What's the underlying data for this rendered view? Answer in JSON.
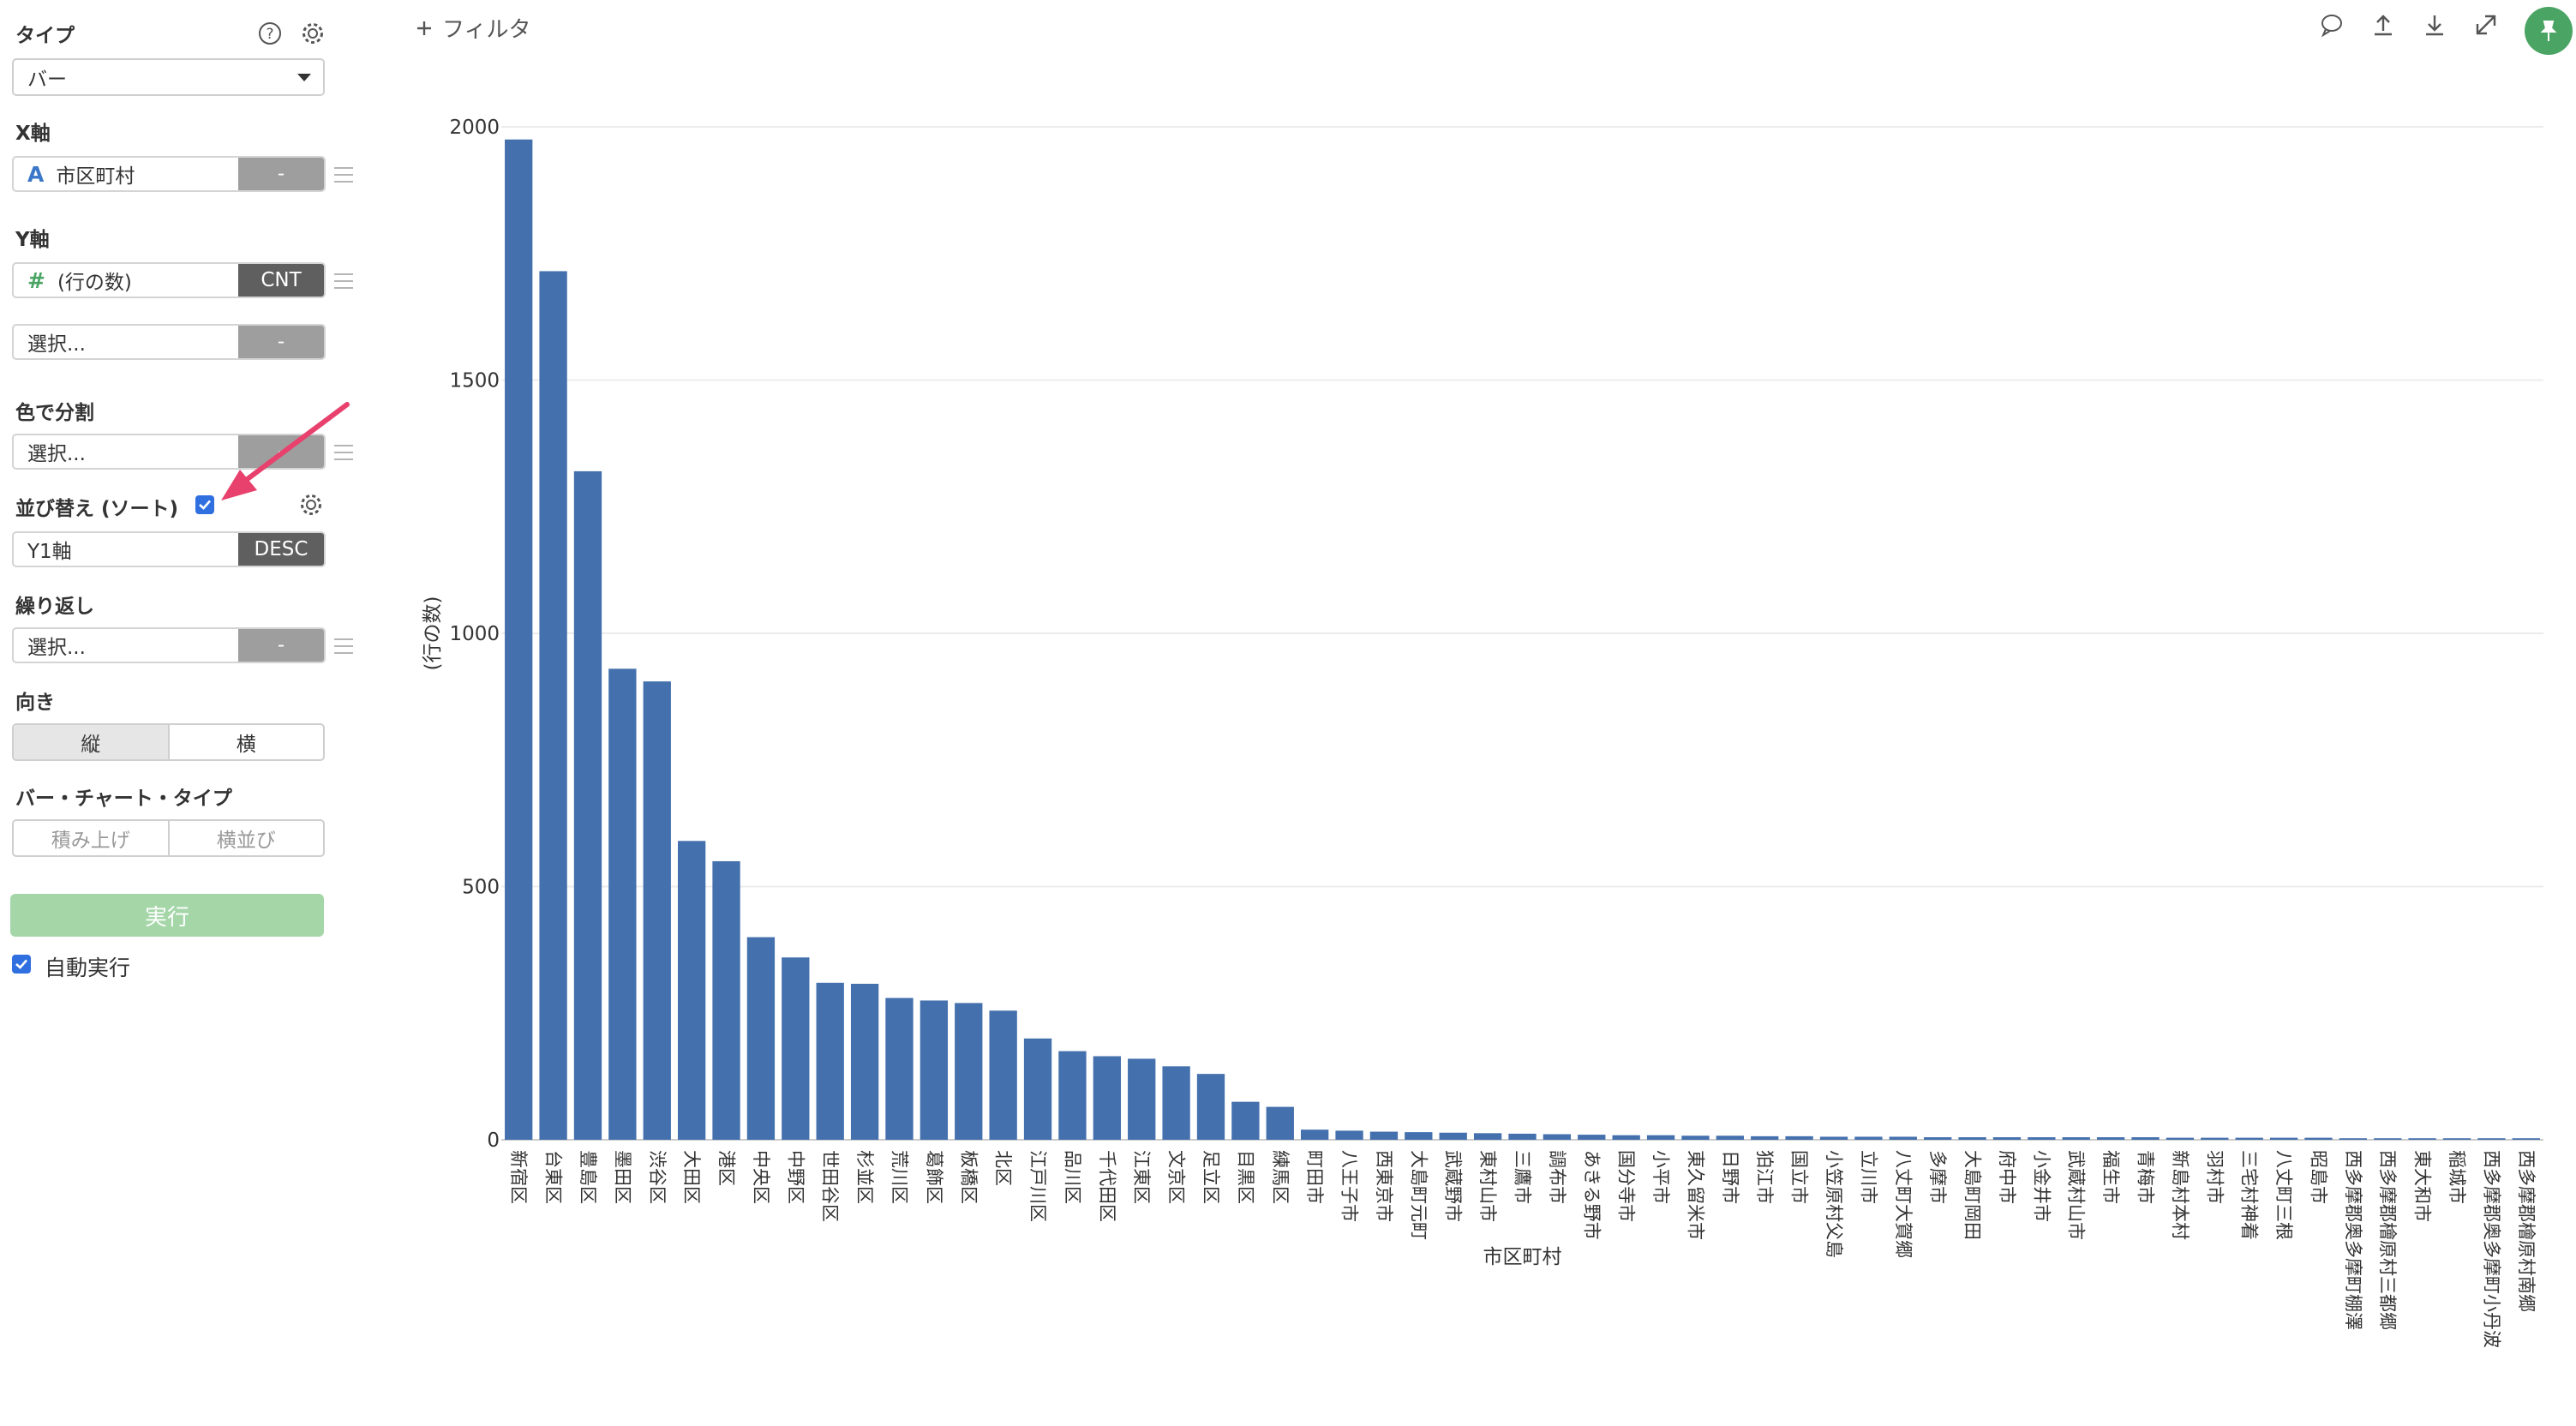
{
  "sidebar": {
    "type_title": "タイプ",
    "type_value": "バー",
    "x_axis_title": "X軸",
    "x_field": {
      "icon_glyph": "A",
      "label": "市区町村",
      "tag": "-"
    },
    "y_axis_title": "Y軸",
    "y_field": {
      "icon_glyph": "#",
      "label": "(行の数)",
      "tag": "CNT"
    },
    "y_field2": {
      "label": "選択...",
      "tag": "-"
    },
    "color_title": "色で分割",
    "color_field": {
      "label": "選択...",
      "tag": "-"
    },
    "sort_title": "並び替え (ソート)",
    "sort_checked": true,
    "sort_field": {
      "label": "Y1軸",
      "tag": "DESC"
    },
    "repeat_title": "繰り返し",
    "repeat_field": {
      "label": "選択...",
      "tag": "-"
    },
    "orientation_title": "向き",
    "orientation_options": [
      "縦",
      "横"
    ],
    "orientation_selected": "縦",
    "bar_type_title": "バー・チャート・タイプ",
    "bar_type_options": [
      "積み上げ",
      "横並び"
    ],
    "run_label": "実行",
    "auto_run_label": "自動実行",
    "auto_run_checked": true
  },
  "topbar": {
    "filter_label": "フィルタ",
    "icons": [
      "comment-icon",
      "upload-icon",
      "download-icon",
      "expand-icon",
      "pin-icon"
    ]
  },
  "colors": {
    "bar": "#4470ad",
    "arrow": "#e8416d",
    "run_button": "#a4d6a8",
    "pin": "#4aa463",
    "tag_dark": "#5f5f5f"
  },
  "chart_data": {
    "type": "bar",
    "xlabel": "市区町村",
    "ylabel": "(行の数)",
    "ylim": [
      0,
      2000
    ],
    "yticks": [
      0,
      500,
      1000,
      1500,
      2000
    ],
    "grid": true,
    "categories": [
      "新宿区",
      "台東区",
      "豊島区",
      "墨田区",
      "渋谷区",
      "大田区",
      "港区",
      "中央区",
      "中野区",
      "世田谷区",
      "杉並区",
      "荒川区",
      "葛飾区",
      "板橋区",
      "北区",
      "江戸川区",
      "品川区",
      "千代田区",
      "江東区",
      "文京区",
      "足立区",
      "目黒区",
      "練馬区",
      "町田市",
      "八王子市",
      "西東京市",
      "大島町元町",
      "武蔵野市",
      "東村山市",
      "三鷹市",
      "調布市",
      "あきる野市",
      "国分寺市",
      "小平市",
      "東久留米市",
      "日野市",
      "狛江市",
      "国立市",
      "小笠原村父島",
      "立川市",
      "八丈町大賀郷",
      "多摩市",
      "大島町岡田",
      "府中市",
      "小金井市",
      "武蔵村山市",
      "福生市",
      "青梅市",
      "新島村本村",
      "羽村市",
      "三宅村神着",
      "八丈町三根",
      "昭島市",
      "西多摩郡奥多摩町棚澤",
      "西多摩郡檜原村三都郷",
      "東大和市",
      "稲城市",
      "西多摩郡奥多摩町小丹波",
      "西多摩郡檜原村南郷"
    ],
    "values": [
      1975,
      1715,
      1320,
      930,
      905,
      590,
      550,
      400,
      360,
      310,
      308,
      280,
      275,
      270,
      255,
      200,
      175,
      165,
      160,
      145,
      130,
      75,
      65,
      20,
      18,
      16,
      15,
      14,
      13,
      12,
      11,
      10,
      9,
      9,
      8,
      8,
      7,
      7,
      6,
      6,
      6,
      5,
      5,
      5,
      5,
      5,
      5,
      5,
      4,
      4,
      4,
      4,
      4,
      3,
      3,
      3,
      3,
      3,
      3
    ]
  }
}
